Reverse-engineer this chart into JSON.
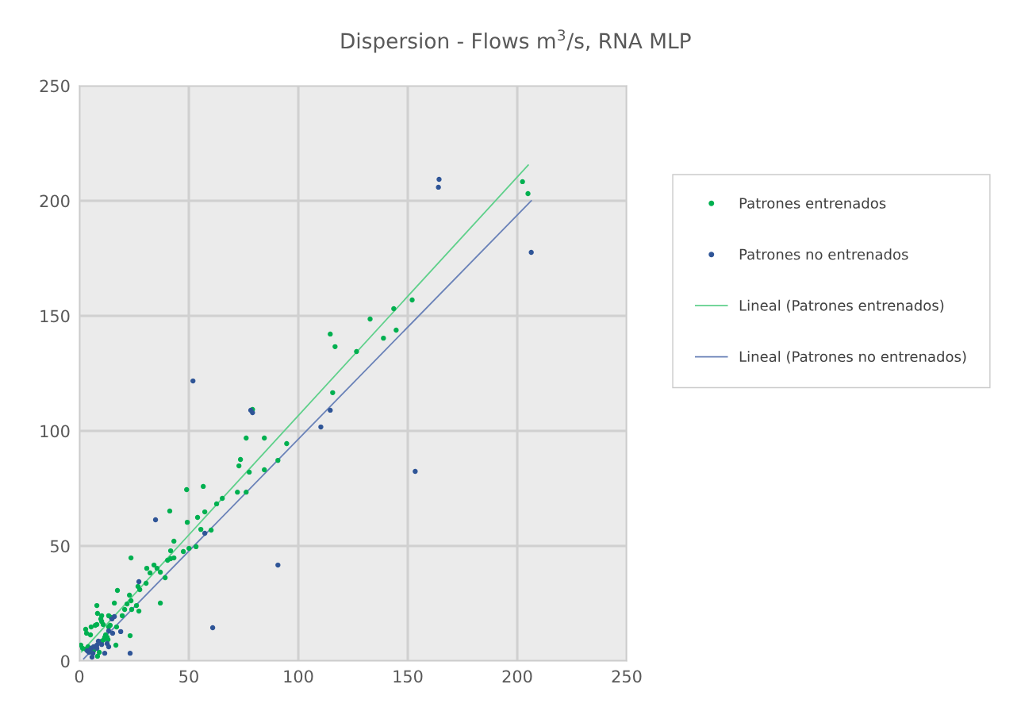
{
  "chart_data": {
    "type": "scatter",
    "title": "Dispersion - Flows m$^{3}$/s, RNA MLP",
    "xlim": [
      0,
      250
    ],
    "ylim": [
      0,
      250
    ],
    "xticks": [
      0,
      50,
      100,
      150,
      200,
      250
    ],
    "yticks": [
      0,
      50,
      100,
      150,
      200,
      250
    ],
    "grid": true,
    "legend": "right",
    "marker": "circle",
    "series": [
      {
        "name": "Patrones entrenados",
        "color": "#00b050",
        "x": [
          0.7,
          1.5,
          2.9,
          4.0,
          6.5,
          9.1,
          8.3,
          2.9,
          3.3,
          5.1,
          5.4,
          7.3,
          8.0,
          10.9,
          10.2,
          9.8,
          10.2,
          8.3,
          8.0,
          13.4,
          14.5,
          19.6,
          13.4,
          14.1,
          17.0,
          12.0,
          11.6,
          12.7,
          13.1,
          11.2,
          10.2,
          16.7,
          23.2,
          16.0,
          17.4,
          20.7,
          21.8,
          22.9,
          23.6,
          23.9,
          26.1,
          27.2,
          37.0,
          23.6,
          26.8,
          27.6,
          30.5,
          30.8,
          32.3,
          34.1,
          35.5,
          37.0,
          39.2,
          40.3,
          41.7,
          43.2,
          41.7,
          47.5,
          50.1,
          53.3,
          43.2,
          55.5,
          60.2,
          49.3,
          54.0,
          57.3,
          41.3,
          62.7,
          65.3,
          72.2,
          76.2,
          49.0,
          56.6,
          77.6,
          84.5,
          72.9,
          73.6,
          90.7,
          94.7,
          76.2,
          84.5,
          79.1,
          115.7,
          126.6,
          116.8,
          138.9,
          114.6,
          144.7,
          132.8,
          143.6,
          152.0,
          204.9,
          202.4
        ],
        "values": [
          6.9,
          5.5,
          5.2,
          6.2,
          4.5,
          3.8,
          2.1,
          13.8,
          12.1,
          11.4,
          14.8,
          15.5,
          15.9,
          15.9,
          17.2,
          18.3,
          19.7,
          20.7,
          24.1,
          19.7,
          19.0,
          19.7,
          14.8,
          15.5,
          14.8,
          11.4,
          10.3,
          10.3,
          9.3,
          9.3,
          8.6,
          6.9,
          11.0,
          25.2,
          30.7,
          22.4,
          24.8,
          28.6,
          26.2,
          22.4,
          24.1,
          21.7,
          25.2,
          44.8,
          32.4,
          31.0,
          33.8,
          40.3,
          38.3,
          41.7,
          40.3,
          38.6,
          36.2,
          43.8,
          44.5,
          44.8,
          47.9,
          47.6,
          49.0,
          49.7,
          52.1,
          57.2,
          56.9,
          60.3,
          62.4,
          64.8,
          65.2,
          68.3,
          70.7,
          73.4,
          73.4,
          74.5,
          75.9,
          82.1,
          83.1,
          84.8,
          87.6,
          87.2,
          94.5,
          96.9,
          96.9,
          109.3,
          116.6,
          134.5,
          136.6,
          140.3,
          142.1,
          143.8,
          148.6,
          153.1,
          156.9,
          203.1,
          208.3
        ]
      },
      {
        "name": "Patrones no entrenados",
        "color": "#2f5597",
        "x": [
          3.6,
          4.4,
          6.2,
          5.8,
          5.4,
          6.5,
          8.0,
          8.0,
          8.7,
          10.2,
          12.7,
          13.4,
          11.6,
          13.4,
          15.2,
          18.9,
          14.9,
          16.0,
          23.2,
          27.2,
          34.8,
          51.9,
          57.3,
          60.9,
          78.3,
          79.1,
          90.7,
          110.3,
          114.6,
          153.4,
          164.0,
          164.3,
          206.4
        ],
        "values": [
          4.5,
          3.8,
          3.4,
          1.7,
          5.5,
          6.2,
          5.5,
          6.9,
          8.6,
          7.2,
          7.6,
          6.2,
          3.4,
          13.1,
          12.1,
          12.8,
          18.3,
          19.3,
          3.4,
          34.5,
          61.4,
          121.7,
          55.5,
          14.5,
          109.0,
          107.9,
          41.7,
          101.7,
          109.0,
          82.4,
          205.9,
          209.3,
          177.6
        ]
      },
      {
        "name": "Lineal (Patrones entrenados)",
        "type": "line",
        "color": "#5fd08b",
        "marker": "none",
        "x": [
          1,
          205
        ],
        "values": [
          4,
          215.5
        ]
      },
      {
        "name": "Lineal (Patrones no entrenados)",
        "type": "line",
        "color": "#6a82b8",
        "marker": "none",
        "x": [
          2,
          206.4
        ],
        "values": [
          1,
          200
        ]
      }
    ]
  }
}
